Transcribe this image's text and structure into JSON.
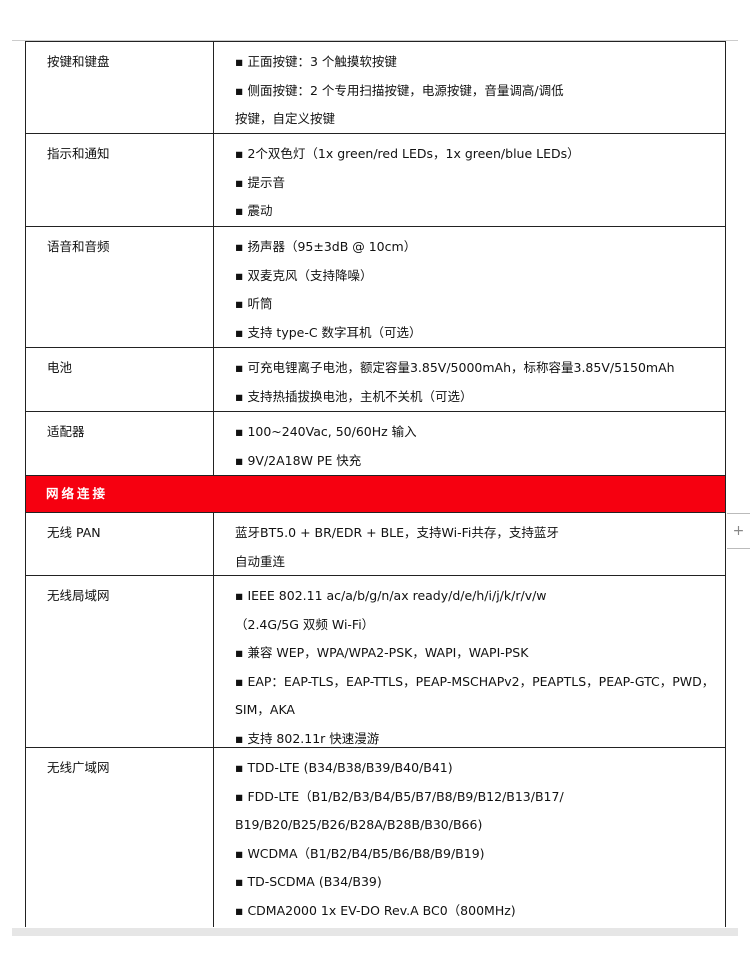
{
  "rows1": [
    {
      "label": "按键和键盘",
      "lines": [
        "▪ 正面按键：3 个触摸软按键",
        "▪ 侧面按键：2 个专用扫描按键，电源按键，音量调高/调低",
        "按键，自定义按键"
      ]
    },
    {
      "label": "指示和通知",
      "lines": [
        "▪ 2个双色灯（1x green/red LEDs，1x green/blue LEDs）",
        "▪ 提示音",
        "▪ 震动"
      ]
    },
    {
      "label": "语音和音频",
      "lines": [
        "▪ 扬声器（95±3dB @ 10cm）",
        "▪ 双麦克风（支持降噪）",
        "▪ 听筒",
        "▪ 支持 type-C 数字耳机（可选）"
      ]
    },
    {
      "label": "电池",
      "lines": [
        "▪ 可充电锂离子电池，额定容量3.85V/5000mAh，标称容量3.85V/5150mAh",
        "▪ 支持热插拔换电池，主机不关机（可选）"
      ]
    },
    {
      "label": "适配器",
      "lines": [
        "▪ 100~240Vac, 50/60Hz 输入",
        "▪ 9V/2A18W PE 快充"
      ]
    }
  ],
  "section_header": "网络连接",
  "rows2": [
    {
      "label": "无线 PAN",
      "lines": [
        "蓝牙BT5.0 + BR/EDR + BLE，支持Wi-Fi共存，支持蓝牙",
        "自动重连"
      ]
    },
    {
      "label": "无线局域网",
      "lines": [
        "▪ IEEE 802.11 ac/a/b/g/n/ax ready/d/e/h/i/j/k/r/v/w",
        "（2.4G/5G 双频 Wi-Fi）",
        "▪ 兼容 WEP，WPA/WPA2-PSK，WAPI，WAPI-PSK",
        "▪ EAP：EAP-TLS，EAP-TTLS，PEAP-MSCHAPv2，PEAPTLS，PEAP-GTC，PWD，",
        "SIM，AKA",
        "▪ 支持 802.11r 快速漫游"
      ]
    },
    {
      "label": "无线广域网",
      "lines": [
        "▪ TDD-LTE (B34/B38/B39/B40/B41)",
        "▪ FDD-LTE（B1/B2/B3/B4/B5/B7/B8/B9/B12/B13/B17/",
        "B19/B20/B25/B26/B28A/B28B/B30/B66)",
        "▪ WCDMA（B1/B2/B4/B5/B6/B8/B9/B19)",
        "▪ TD-SCDMA (B34/B39)",
        "▪ CDMA2000 1x EV-DO Rev.A BC0（800MHz)"
      ]
    }
  ],
  "side_button": "+"
}
